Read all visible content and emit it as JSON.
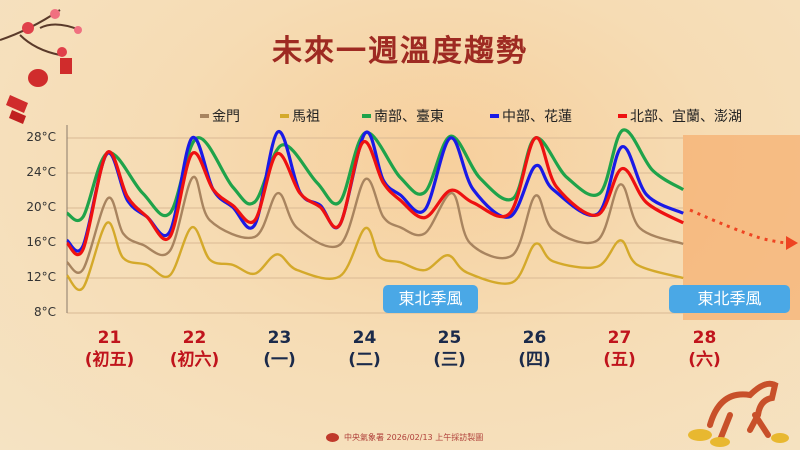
{
  "title": "未來一週溫度趨勢",
  "footer": "中央氣象署 2026/02/13 上午採訪製圖",
  "badges": [
    "東北季風",
    "東北季風"
  ],
  "days": [
    {
      "date": "21",
      "weekday": "(初五)",
      "color": "#c0141c"
    },
    {
      "date": "22",
      "weekday": "(初六)",
      "color": "#c0141c"
    },
    {
      "date": "23",
      "weekday": "(一)",
      "color": "#1b2a4a"
    },
    {
      "date": "24",
      "weekday": "(二)",
      "color": "#1b2a4a"
    },
    {
      "date": "25",
      "weekday": "(三)",
      "color": "#1b2a4a"
    },
    {
      "date": "26",
      "weekday": "(四)",
      "color": "#1b2a4a"
    },
    {
      "date": "27",
      "weekday": "(五)",
      "color": "#c0141c"
    },
    {
      "date": "28",
      "weekday": "(六)",
      "color": "#c0141c"
    }
  ],
  "chart_data": {
    "type": "line",
    "title": "未來一週溫度趨勢",
    "xlabel": "",
    "ylabel": "",
    "ylim": [
      8,
      28
    ],
    "yticks": [
      "8°C",
      "12°C",
      "16°C",
      "20°C",
      "24°C",
      "28°C"
    ],
    "ytick_values": [
      8,
      12,
      16,
      20,
      24,
      28
    ],
    "xlim": [
      21,
      29
    ],
    "grid": true,
    "legend": "top",
    "forecast_trend": "下降 (28日)",
    "series": [
      {
        "name": "金門",
        "color": "#a8845f",
        "points": [
          [
            21,
            13.8
          ],
          [
            21.19,
            13.0
          ],
          [
            21.48,
            21.1
          ],
          [
            21.66,
            17.1
          ],
          [
            21.89,
            15.8
          ],
          [
            22.21,
            15.1
          ],
          [
            22.48,
            23.5
          ],
          [
            22.68,
            18.6
          ],
          [
            23.21,
            16.7
          ],
          [
            23.48,
            21.7
          ],
          [
            23.71,
            17.7
          ],
          [
            24.21,
            15.8
          ],
          [
            24.51,
            23.3
          ],
          [
            24.72,
            19.0
          ],
          [
            24.92,
            17.8
          ],
          [
            25.21,
            17.1
          ],
          [
            25.53,
            21.7
          ],
          [
            25.74,
            16.0
          ],
          [
            26.24,
            14.6
          ],
          [
            26.51,
            21.4
          ],
          [
            26.72,
            17.5
          ],
          [
            27.24,
            16.3
          ],
          [
            27.51,
            22.7
          ],
          [
            27.74,
            17.7
          ],
          [
            28.25,
            15.9
          ]
        ]
      },
      {
        "name": "馬祖",
        "color": "#d4a92a",
        "points": [
          [
            21,
            12.3
          ],
          [
            21.19,
            10.9
          ],
          [
            21.47,
            18.3
          ],
          [
            21.66,
            14.3
          ],
          [
            21.94,
            13.5
          ],
          [
            22.21,
            12.3
          ],
          [
            22.47,
            17.8
          ],
          [
            22.68,
            14.1
          ],
          [
            22.95,
            13.5
          ],
          [
            23.21,
            12.5
          ],
          [
            23.47,
            14.7
          ],
          [
            23.71,
            12.9
          ],
          [
            24.21,
            12.2
          ],
          [
            24.51,
            17.7
          ],
          [
            24.68,
            14.4
          ],
          [
            24.92,
            13.8
          ],
          [
            25.21,
            12.9
          ],
          [
            25.48,
            14.6
          ],
          [
            25.71,
            12.6
          ],
          [
            26.24,
            11.5
          ],
          [
            26.51,
            15.9
          ],
          [
            26.72,
            13.9
          ],
          [
            27.24,
            13.3
          ],
          [
            27.51,
            16.3
          ],
          [
            27.71,
            13.5
          ],
          [
            28.25,
            12.0
          ]
        ]
      },
      {
        "name": "南部、臺東",
        "color": "#1fa34a",
        "points": [
          [
            21,
            19.4
          ],
          [
            21.19,
            19.0
          ],
          [
            21.48,
            26.3
          ],
          [
            21.89,
            21.7
          ],
          [
            22.21,
            19.4
          ],
          [
            22.53,
            28.0
          ],
          [
            22.95,
            22.4
          ],
          [
            23.21,
            20.7
          ],
          [
            23.53,
            27.2
          ],
          [
            23.94,
            22.9
          ],
          [
            24.21,
            20.7
          ],
          [
            24.51,
            28.6
          ],
          [
            24.92,
            23.5
          ],
          [
            25.21,
            21.8
          ],
          [
            25.51,
            28.2
          ],
          [
            25.86,
            23.4
          ],
          [
            26.25,
            21.1
          ],
          [
            26.51,
            28.0
          ],
          [
            26.88,
            23.5
          ],
          [
            27.27,
            21.7
          ],
          [
            27.54,
            28.9
          ],
          [
            27.89,
            24.3
          ],
          [
            28.25,
            22.1
          ]
        ]
      },
      {
        "name": "中部、花蓮",
        "color": "#1a1ae6",
        "points": [
          [
            21,
            16.3
          ],
          [
            21.19,
            15.7
          ],
          [
            21.47,
            26.2
          ],
          [
            21.71,
            20.9
          ],
          [
            21.94,
            19.0
          ],
          [
            22.21,
            17.3
          ],
          [
            22.47,
            28.0
          ],
          [
            22.72,
            22.1
          ],
          [
            22.95,
            20.1
          ],
          [
            23.21,
            18.1
          ],
          [
            23.48,
            28.7
          ],
          [
            23.74,
            21.8
          ],
          [
            23.98,
            20.3
          ],
          [
            24.21,
            18.1
          ],
          [
            24.51,
            28.6
          ],
          [
            24.72,
            23.2
          ],
          [
            24.92,
            21.5
          ],
          [
            25.21,
            19.8
          ],
          [
            25.51,
            28.0
          ],
          [
            25.78,
            22.1
          ],
          [
            26.21,
            19.0
          ],
          [
            26.51,
            24.8
          ],
          [
            26.72,
            22.1
          ],
          [
            27.24,
            19.3
          ],
          [
            27.53,
            27.0
          ],
          [
            27.82,
            21.5
          ],
          [
            28.25,
            19.4
          ]
        ]
      },
      {
        "name": "北部、宜蘭、澎湖",
        "color": "#ee1111",
        "points": [
          [
            21,
            16.0
          ],
          [
            21.19,
            15.3
          ],
          [
            21.47,
            26.3
          ],
          [
            21.71,
            21.3
          ],
          [
            21.94,
            19.0
          ],
          [
            22.21,
            16.7
          ],
          [
            22.47,
            26.2
          ],
          [
            22.72,
            22.1
          ],
          [
            22.95,
            20.3
          ],
          [
            23.21,
            18.6
          ],
          [
            23.47,
            26.2
          ],
          [
            23.74,
            21.7
          ],
          [
            23.98,
            20.1
          ],
          [
            24.21,
            18.1
          ],
          [
            24.48,
            27.5
          ],
          [
            24.72,
            22.9
          ],
          [
            24.92,
            20.9
          ],
          [
            25.21,
            18.9
          ],
          [
            25.51,
            22.0
          ],
          [
            25.78,
            20.6
          ],
          [
            26.21,
            19.4
          ],
          [
            26.51,
            28.0
          ],
          [
            26.76,
            22.4
          ],
          [
            27.24,
            19.2
          ],
          [
            27.53,
            24.5
          ],
          [
            27.82,
            20.6
          ],
          [
            28.25,
            18.3
          ]
        ]
      }
    ]
  }
}
